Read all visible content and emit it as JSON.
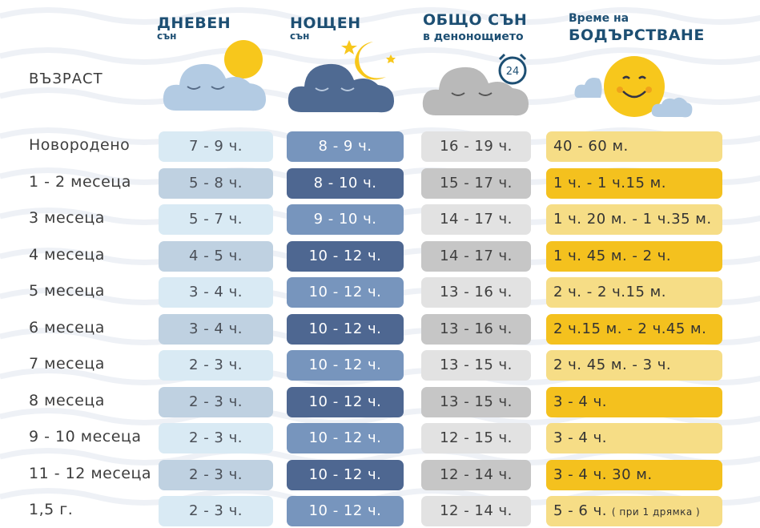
{
  "header": {
    "age": "ВЪЗРАСТ",
    "day": {
      "title": "ДНЕВЕН",
      "sub": "сън"
    },
    "night": {
      "title": "НОЩЕН",
      "sub": "сън"
    },
    "total": {
      "title": "ОБЩО СЪН",
      "sub": "в денонощието"
    },
    "awake": {
      "title": "Време на",
      "sub": "БОДЪРСТВАНЕ"
    },
    "clock_number": "24"
  },
  "rows": [
    {
      "age": "Новородено",
      "day": "7 - 9 ч.",
      "night": "8 - 9 ч.",
      "total": "16 - 19 ч.",
      "awake": "40 - 60 м.",
      "awake_note": ""
    },
    {
      "age": "1 - 2 месеца",
      "day": "5 - 8 ч.",
      "night": "8 - 10 ч.",
      "total": "15 - 17 ч.",
      "awake": "1 ч. - 1 ч.15 м.",
      "awake_note": ""
    },
    {
      "age": "3 месеца",
      "day": "5 - 7 ч.",
      "night": "9 - 10 ч.",
      "total": "14 - 17 ч.",
      "awake": "1 ч. 20 м. - 1 ч.35 м.",
      "awake_note": ""
    },
    {
      "age": "4 месеца",
      "day": "4 - 5 ч.",
      "night": "10 - 12 ч.",
      "total": "14 - 17 ч.",
      "awake": "1 ч. 45 м. - 2 ч.",
      "awake_note": ""
    },
    {
      "age": "5 месеца",
      "day": "3 - 4 ч.",
      "night": "10 - 12 ч.",
      "total": "13 - 16 ч.",
      "awake": "2 ч. - 2 ч.15 м.",
      "awake_note": ""
    },
    {
      "age": "6 месеца",
      "day": "3 - 4 ч.",
      "night": "10 - 12 ч.",
      "total": "13 - 16 ч.",
      "awake": "2 ч.15 м. - 2 ч.45 м.",
      "awake_note": ""
    },
    {
      "age": "7 месеца",
      "day": "2 - 3 ч.",
      "night": "10 - 12 ч.",
      "total": "13 - 15 ч.",
      "awake": "2 ч. 45 м. - 3 ч.",
      "awake_note": ""
    },
    {
      "age": "8 месеца",
      "day": "2 - 3 ч.",
      "night": "10 - 12 ч.",
      "total": "13 - 15 ч.",
      "awake": "3 - 4 ч.",
      "awake_note": ""
    },
    {
      "age": "9 - 10 месеца",
      "day": "2 - 3 ч.",
      "night": "10 - 12 ч.",
      "total": "12 - 15 ч.",
      "awake": "3 - 4 ч.",
      "awake_note": ""
    },
    {
      "age": "11 - 12 месеца",
      "day": "2 - 3 ч.",
      "night": "10 - 12 ч.",
      "total": "12 - 14 ч.",
      "awake": "3 - 4 ч. 30 м.",
      "awake_note": ""
    },
    {
      "age": "1,5 г.",
      "day": "2 - 3 ч.",
      "night": "10 - 12 ч.",
      "total": "12 - 14 ч.",
      "awake": "5 - 6 ч.",
      "awake_note": "( при 1 дрямка )"
    }
  ],
  "icons": [
    "cloud-sun-sleeping-icon",
    "cloud-moon-stars-sleeping-icon",
    "cloud-alarm-clock-sleeping-icon",
    "smiling-sun-icon"
  ],
  "colors": {
    "day_light": "#d9eaf4",
    "day_dark": "#bfd1e1",
    "night_light": "#7795bd",
    "night_dark": "#4e6791",
    "total_light": "#e2e2e2",
    "total_dark": "#c6c6c6",
    "awake_light": "#f6dd86",
    "awake_dark": "#f4c11e",
    "header_text": "#1d4f73"
  }
}
